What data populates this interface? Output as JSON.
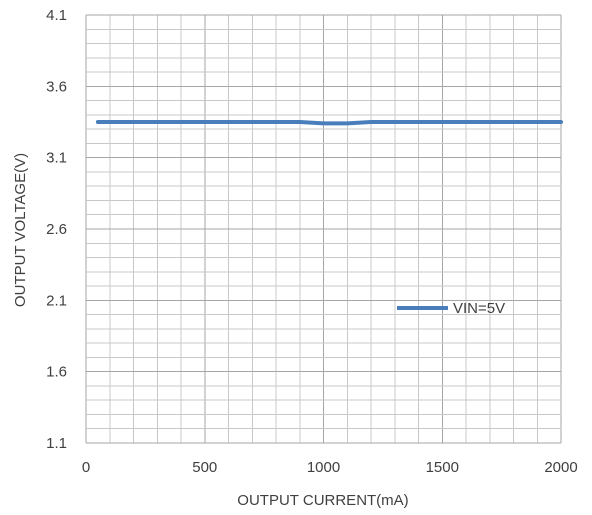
{
  "chart_data": {
    "type": "line",
    "title": "",
    "xlabel": "OUTPUT CURRENT(mA)",
    "ylabel": "OUTPUT VOLTAGE(V)",
    "xlim": [
      0,
      2000
    ],
    "ylim": [
      1.1,
      4.1
    ],
    "x_ticks": [
      0,
      500,
      1000,
      1500,
      2000
    ],
    "y_ticks": [
      "1.1",
      "1.6",
      "2.1",
      "2.6",
      "3.1",
      "3.6",
      "4.1"
    ],
    "x_minor_step": 100,
    "y_minor_step": 0.1,
    "grid": true,
    "legend_position": "center-right",
    "series": [
      {
        "name": "VIN=5V",
        "color": "#4a7ebb",
        "x": [
          50,
          100,
          200,
          300,
          400,
          500,
          600,
          700,
          800,
          900,
          1000,
          1100,
          1200,
          1300,
          1400,
          1500,
          1600,
          1700,
          1800,
          1900,
          2000
        ],
        "y": [
          3.35,
          3.35,
          3.35,
          3.35,
          3.35,
          3.35,
          3.35,
          3.35,
          3.35,
          3.35,
          3.34,
          3.34,
          3.35,
          3.35,
          3.35,
          3.35,
          3.35,
          3.35,
          3.35,
          3.35,
          3.35
        ]
      }
    ]
  }
}
